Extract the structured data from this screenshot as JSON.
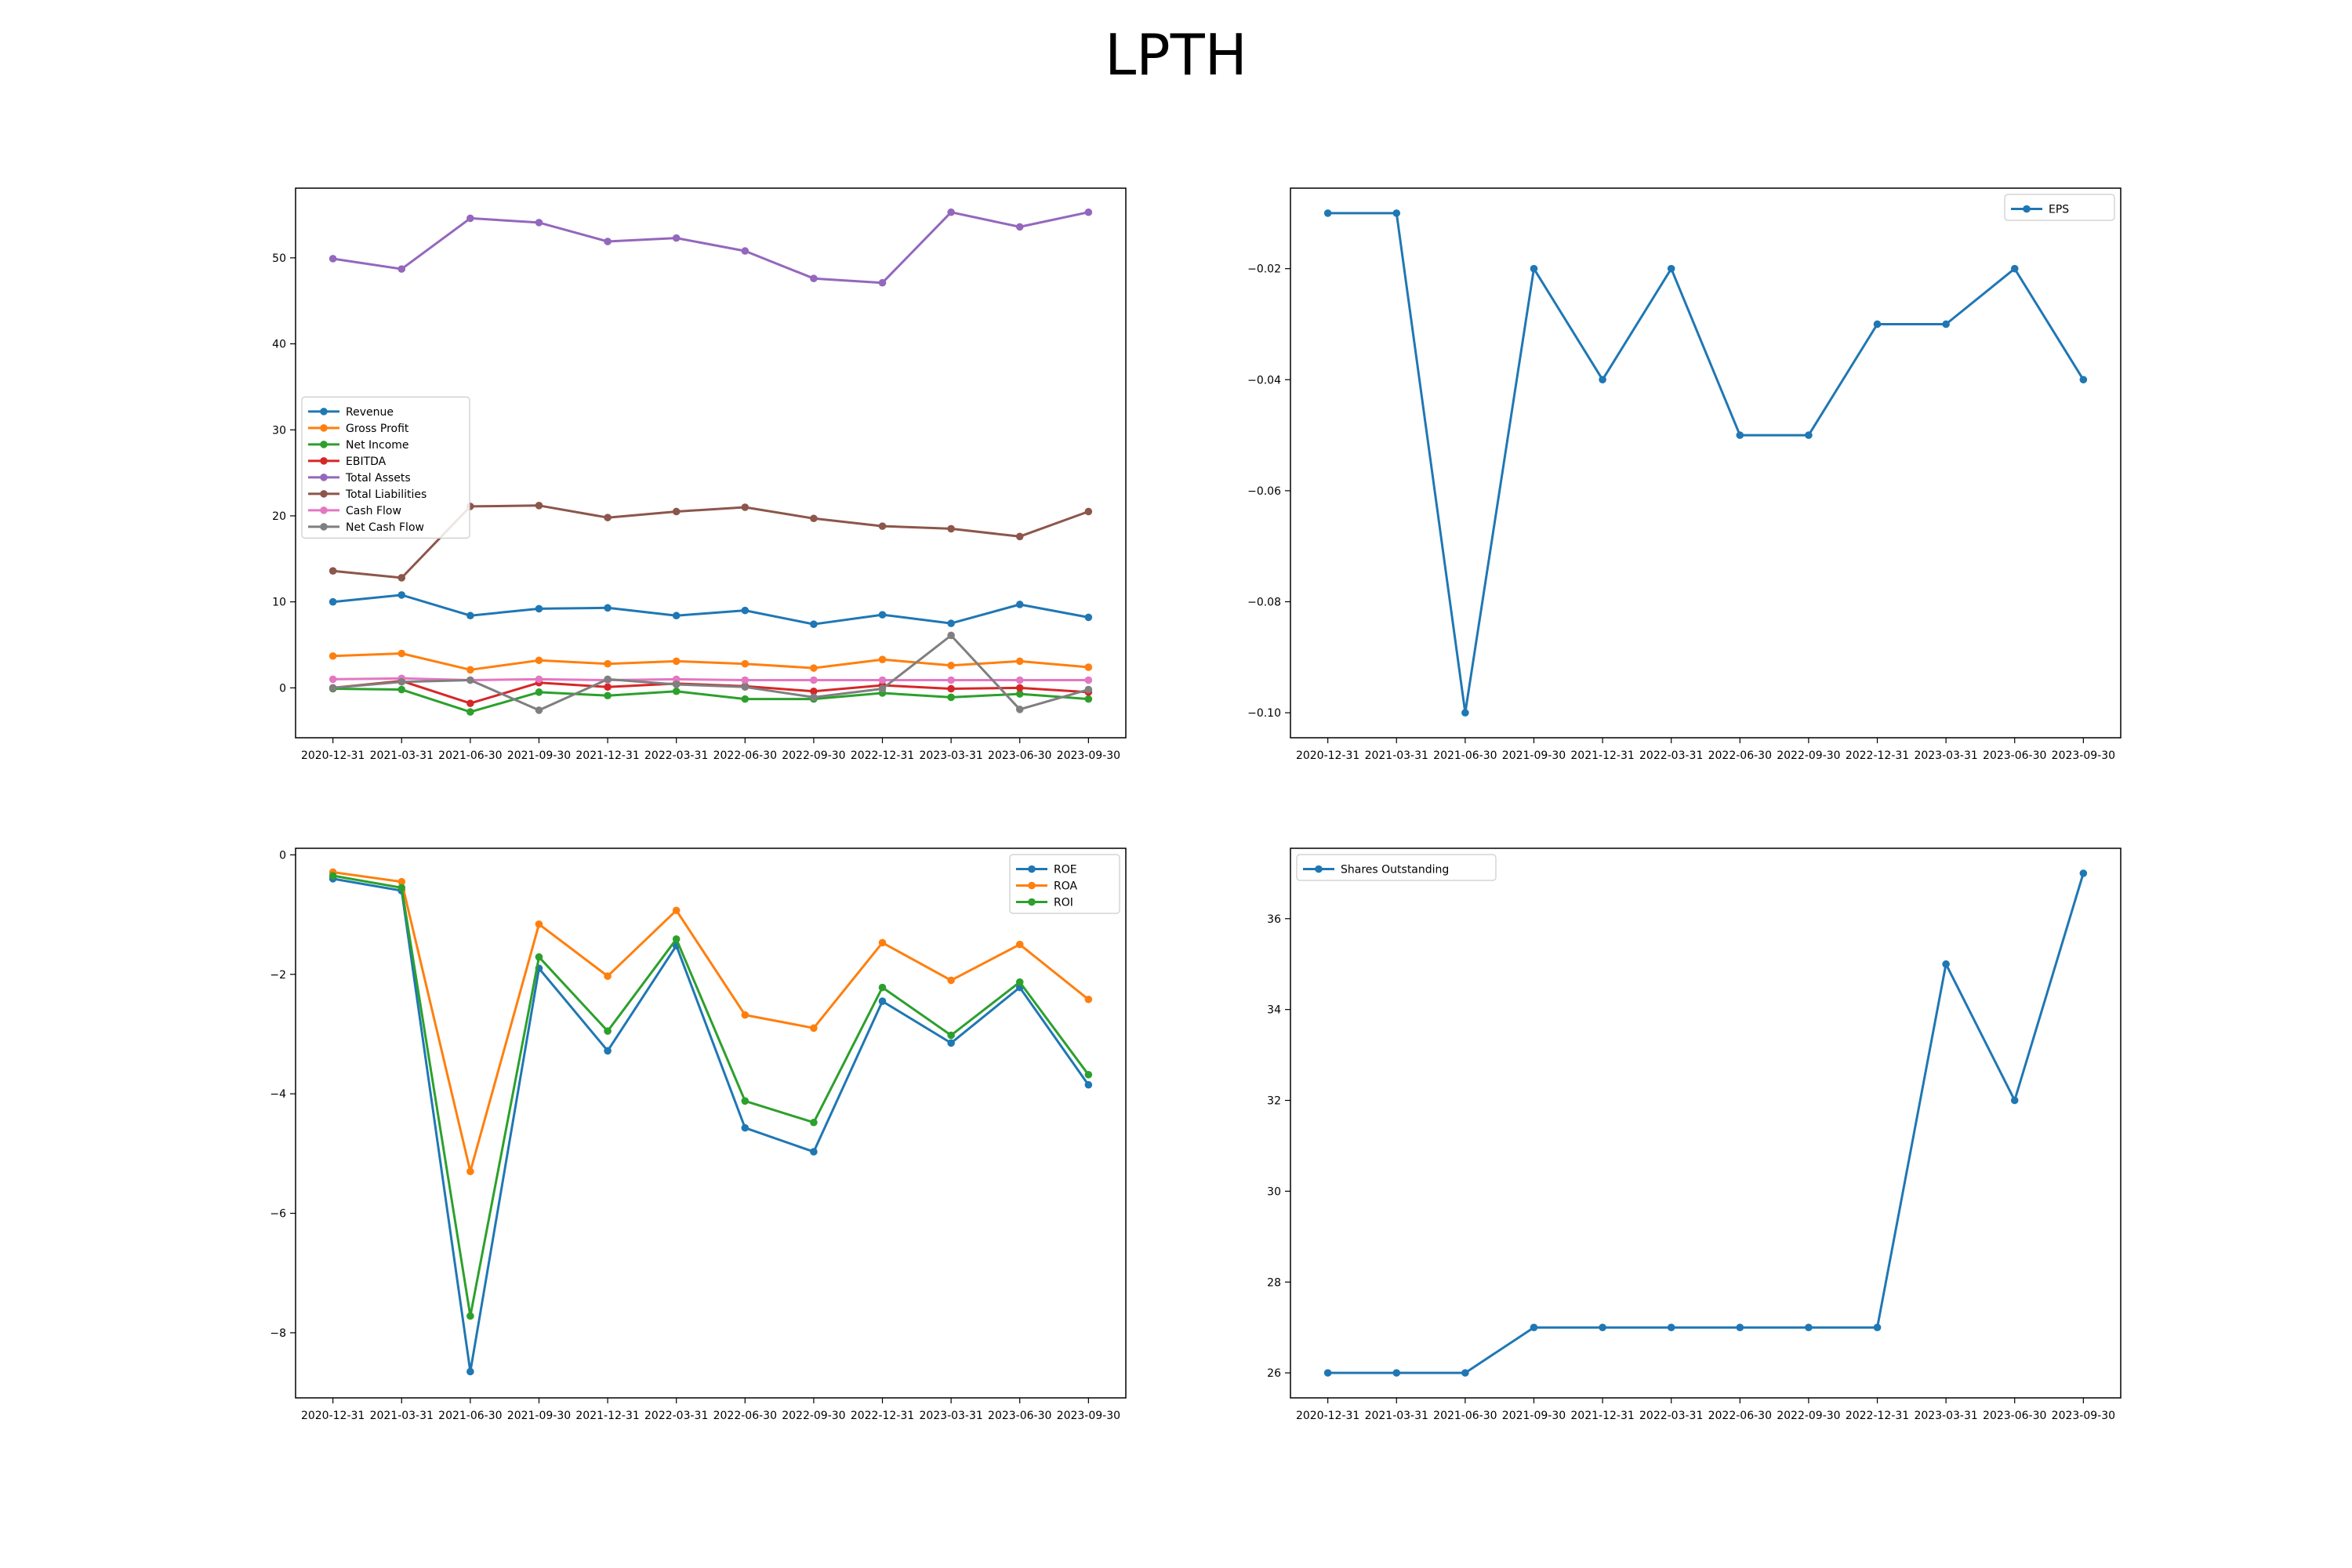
{
  "figure": {
    "title": "LPTH"
  },
  "chart_data": [
    {
      "type": "line",
      "legend_position": "center-left",
      "categories": [
        "2020-12-31",
        "2021-03-31",
        "2021-06-30",
        "2021-09-30",
        "2021-12-31",
        "2022-03-31",
        "2022-06-30",
        "2022-09-30",
        "2022-12-31",
        "2023-03-31",
        "2023-06-30",
        "2023-09-30"
      ],
      "ylim": [
        -5.8,
        58.1
      ],
      "yticks": [
        0,
        10,
        20,
        30,
        40,
        50
      ],
      "series": [
        {
          "name": "Revenue",
          "color": "#1f77b4",
          "values": [
            10.0,
            10.8,
            8.4,
            9.2,
            9.3,
            8.4,
            9.0,
            7.4,
            8.5,
            7.5,
            9.7,
            8.2
          ]
        },
        {
          "name": "Gross Profit",
          "color": "#ff7f0e",
          "values": [
            3.7,
            4.0,
            2.1,
            3.2,
            2.8,
            3.1,
            2.8,
            2.3,
            3.3,
            2.6,
            3.1,
            2.4
          ]
        },
        {
          "name": "Net Income",
          "color": "#2ca02c",
          "values": [
            -0.1,
            -0.2,
            -2.8,
            -0.5,
            -0.9,
            -0.4,
            -1.3,
            -1.3,
            -0.6,
            -1.1,
            -0.7,
            -1.3
          ]
        },
        {
          "name": "EBITDA",
          "color": "#d62728",
          "values": [
            0.0,
            0.8,
            -1.8,
            0.6,
            0.1,
            0.5,
            0.2,
            -0.4,
            0.3,
            -0.1,
            0.0,
            -0.5
          ]
        },
        {
          "name": "Total Assets",
          "color": "#9467bd",
          "values": [
            49.9,
            48.7,
            54.6,
            54.1,
            51.9,
            52.3,
            50.8,
            47.6,
            47.1,
            55.3,
            53.6,
            55.3
          ]
        },
        {
          "name": "Total Liabilities",
          "color": "#8c564b",
          "values": [
            13.6,
            12.8,
            21.1,
            21.2,
            19.8,
            20.5,
            21.0,
            19.7,
            18.8,
            18.5,
            17.6,
            20.5
          ]
        },
        {
          "name": "Cash Flow",
          "color": "#e377c2",
          "values": [
            1.0,
            1.1,
            0.9,
            1.0,
            0.9,
            1.0,
            0.9,
            0.9,
            0.9,
            0.9,
            0.9,
            0.9
          ]
        },
        {
          "name": "Net Cash Flow",
          "color": "#7f7f7f",
          "values": [
            0.0,
            0.7,
            0.9,
            -2.6,
            1.0,
            0.4,
            0.1,
            -1.1,
            -0.1,
            6.1,
            -2.5,
            -0.2
          ]
        }
      ]
    },
    {
      "type": "line",
      "legend_position": "top-right",
      "categories": [
        "2020-12-31",
        "2021-03-31",
        "2021-06-30",
        "2021-09-30",
        "2021-12-31",
        "2022-03-31",
        "2022-06-30",
        "2022-09-30",
        "2022-12-31",
        "2023-03-31",
        "2023-06-30",
        "2023-09-30"
      ],
      "ylim": [
        -0.1045,
        -0.0055
      ],
      "yticks": [
        -0.02,
        -0.04,
        -0.06,
        -0.08,
        -0.1
      ],
      "ytick_labels": [
        "−0.02",
        "−0.04",
        "−0.06",
        "−0.08",
        "−0.10"
      ],
      "series": [
        {
          "name": "EPS",
          "color": "#1f77b4",
          "values": [
            -0.01,
            -0.01,
            -0.1,
            -0.02,
            -0.04,
            -0.02,
            -0.05,
            -0.05,
            -0.03,
            -0.03,
            -0.02,
            -0.04
          ]
        }
      ]
    },
    {
      "type": "line",
      "legend_position": "top-right",
      "categories": [
        "2020-12-31",
        "2021-03-31",
        "2021-06-30",
        "2021-09-30",
        "2021-12-31",
        "2022-03-31",
        "2022-06-30",
        "2022-09-30",
        "2022-12-31",
        "2023-03-31",
        "2023-06-30",
        "2023-09-30"
      ],
      "ylim": [
        -9.09,
        0.11
      ],
      "yticks": [
        0,
        -2,
        -4,
        -6,
        -8
      ],
      "ytick_labels": [
        "0",
        "−2",
        "−4",
        "−6",
        "−8"
      ],
      "series": [
        {
          "name": "ROE",
          "color": "#1f77b4",
          "values": [
            -0.4,
            -0.6,
            -8.65,
            -1.9,
            -3.28,
            -1.52,
            -4.57,
            -4.97,
            -2.45,
            -3.15,
            -2.22,
            -3.85
          ]
        },
        {
          "name": "ROA",
          "color": "#ff7f0e",
          "values": [
            -0.29,
            -0.45,
            -5.3,
            -1.16,
            -2.03,
            -0.93,
            -2.68,
            -2.9,
            -1.47,
            -2.1,
            -1.5,
            -2.42
          ]
        },
        {
          "name": "ROI",
          "color": "#2ca02c",
          "values": [
            -0.35,
            -0.55,
            -7.72,
            -1.71,
            -2.95,
            -1.41,
            -4.12,
            -4.48,
            -2.22,
            -3.02,
            -2.13,
            -3.68
          ]
        }
      ]
    },
    {
      "type": "line",
      "legend_position": "top-left",
      "categories": [
        "2020-12-31",
        "2021-03-31",
        "2021-06-30",
        "2021-09-30",
        "2021-12-31",
        "2022-03-31",
        "2022-06-30",
        "2022-09-30",
        "2022-12-31",
        "2023-03-31",
        "2023-06-30",
        "2023-09-30"
      ],
      "ylim": [
        25.45,
        37.55
      ],
      "yticks": [
        26,
        28,
        30,
        32,
        34,
        36
      ],
      "series": [
        {
          "name": "Shares Outstanding",
          "color": "#1f77b4",
          "values": [
            26,
            26,
            26,
            27,
            27,
            27,
            27,
            27,
            27,
            35,
            32,
            37
          ]
        }
      ]
    }
  ]
}
